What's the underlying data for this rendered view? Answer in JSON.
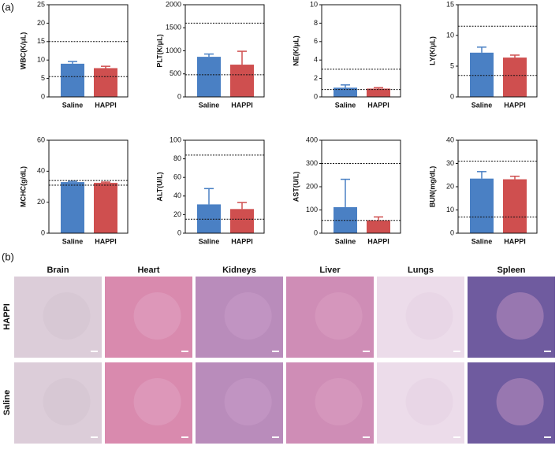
{
  "figure": {
    "panel_a_label": "(a)",
    "panel_b_label": "(b)"
  },
  "chart_data": [
    {
      "type": "bar",
      "ylabel": "WBC(K/μL)",
      "categories": [
        "Saline",
        "HAPPI"
      ],
      "values": [
        9.0,
        7.8
      ],
      "errors": [
        0.6,
        0.5
      ],
      "colors": [
        "#4a80c4",
        "#cf4f4f"
      ],
      "ylim": [
        0,
        25
      ],
      "yticks": [
        0,
        5,
        10,
        15,
        20,
        25
      ],
      "reference_lines": [
        15,
        5.5
      ]
    },
    {
      "type": "bar",
      "ylabel": "PLT(K/μL)",
      "categories": [
        "Saline",
        "HAPPI"
      ],
      "values": [
        870,
        700
      ],
      "errors": [
        60,
        290
      ],
      "colors": [
        "#4a80c4",
        "#cf4f4f"
      ],
      "ylim": [
        0,
        2000
      ],
      "yticks": [
        0,
        500,
        1000,
        1500,
        2000
      ],
      "reference_lines": [
        1600,
        480
      ]
    },
    {
      "type": "bar",
      "ylabel": "NE(K/μL)",
      "categories": [
        "Saline",
        "HAPPI"
      ],
      "values": [
        1.0,
        0.9
      ],
      "errors": [
        0.3,
        0.1
      ],
      "colors": [
        "#4a80c4",
        "#cf4f4f"
      ],
      "ylim": [
        0,
        10
      ],
      "yticks": [
        0,
        2,
        4,
        6,
        8,
        10
      ],
      "reference_lines": [
        3.0,
        0.8
      ]
    },
    {
      "type": "bar",
      "ylabel": "LY(K/μL)",
      "categories": [
        "Saline",
        "HAPPI"
      ],
      "values": [
        7.2,
        6.4
      ],
      "errors": [
        0.9,
        0.4
      ],
      "colors": [
        "#4a80c4",
        "#cf4f4f"
      ],
      "ylim": [
        0,
        15
      ],
      "yticks": [
        0,
        5,
        10,
        15
      ],
      "reference_lines": [
        11.5,
        3.5
      ]
    },
    {
      "type": "bar",
      "ylabel": "MCHC(g/dL)",
      "categories": [
        "Saline",
        "HAPPI"
      ],
      "values": [
        33,
        32.5
      ],
      "errors": [
        0.5,
        0.5
      ],
      "colors": [
        "#4a80c4",
        "#cf4f4f"
      ],
      "ylim": [
        0,
        60
      ],
      "yticks": [
        0,
        20,
        40,
        60
      ],
      "reference_lines": [
        34,
        31
      ]
    },
    {
      "type": "bar",
      "ylabel": "ALT(U/L)",
      "categories": [
        "Saline",
        "HAPPI"
      ],
      "values": [
        31,
        26
      ],
      "errors": [
        17,
        7
      ],
      "colors": [
        "#4a80c4",
        "#cf4f4f"
      ],
      "ylim": [
        0,
        100
      ],
      "yticks": [
        0,
        20,
        40,
        60,
        80,
        100
      ],
      "reference_lines": [
        84,
        15
      ]
    },
    {
      "type": "bar",
      "ylabel": "AST(U/L)",
      "categories": [
        "Saline",
        "HAPPI"
      ],
      "values": [
        112,
        55
      ],
      "errors": [
        120,
        15
      ],
      "colors": [
        "#4a80c4",
        "#cf4f4f"
      ],
      "ylim": [
        0,
        400
      ],
      "yticks": [
        0,
        100,
        200,
        300,
        400
      ],
      "reference_lines": [
        300,
        55
      ]
    },
    {
      "type": "bar",
      "ylabel": "BUN(mg/dL)",
      "categories": [
        "Saline",
        "HAPPI"
      ],
      "values": [
        23.5,
        23.2
      ],
      "errors": [
        3,
        1.3
      ],
      "colors": [
        "#4a80c4",
        "#cf4f4f"
      ],
      "ylim": [
        0,
        40
      ],
      "yticks": [
        0,
        10,
        20,
        30,
        40
      ],
      "reference_lines": [
        31,
        7
      ]
    }
  ],
  "histology": {
    "columns": [
      "Brain",
      "Heart",
      "Kidneys",
      "Liver",
      "Lungs",
      "Spleen"
    ],
    "rows": [
      "HAPPI",
      "Saline"
    ]
  }
}
